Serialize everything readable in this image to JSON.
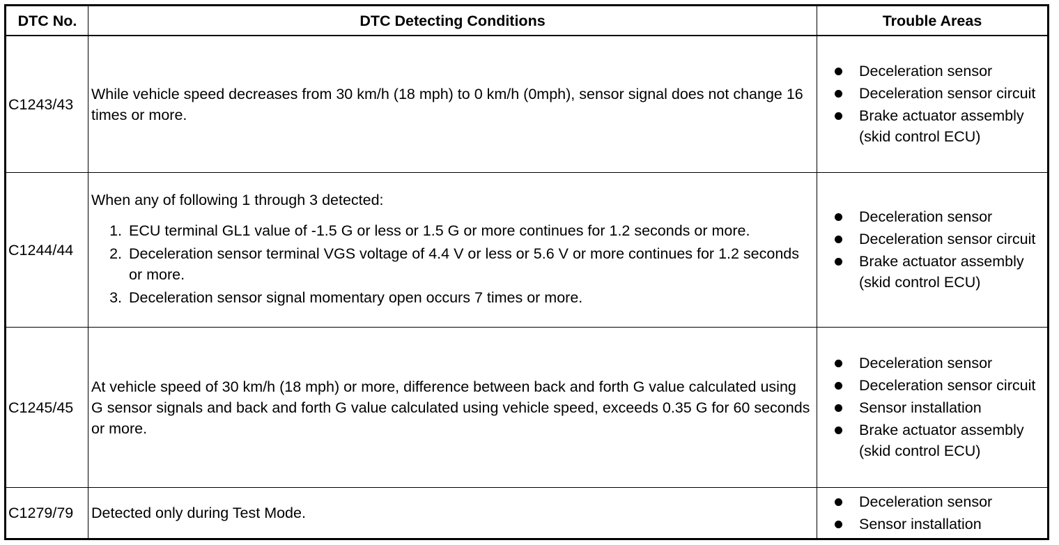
{
  "headers": {
    "dtc_no": "DTC No.",
    "conditions": "DTC Detecting Conditions",
    "trouble_areas": "Trouble Areas"
  },
  "rows": [
    {
      "dtc": "C1243/43",
      "condition": "While vehicle speed decreases from 30 km/h (18 mph) to 0 km/h (0mph), sensor signal does not change 16 times or more.",
      "areas": [
        "Deceleration sensor",
        "Deceleration sensor circuit",
        "Brake actuator assembly (skid control ECU)"
      ]
    },
    {
      "dtc": "C1244/44",
      "condition_intro": "When any of following 1 through 3 detected:",
      "steps": [
        "ECU terminal GL1 value of -1.5 G or less or 1.5 G or more continues for 1.2 seconds or more.",
        "Deceleration sensor terminal VGS voltage of 4.4 V or less or 5.6 V or more continues for 1.2 seconds or more.",
        "Deceleration sensor signal momentary open occurs 7 times or more."
      ],
      "areas": [
        "Deceleration sensor",
        "Deceleration sensor circuit",
        "Brake actuator assembly (skid control ECU)"
      ]
    },
    {
      "dtc": "C1245/45",
      "condition": "At vehicle speed of 30 km/h (18 mph) or more, difference between back and forth G value calculated using G sensor signals and back and forth G value calculated using vehicle speed, exceeds 0.35 G for 60 seconds or more.",
      "areas": [
        "Deceleration sensor",
        "Deceleration sensor circuit",
        "Sensor installation",
        "Brake actuator assembly (skid control ECU)"
      ]
    },
    {
      "dtc": "C1279/79",
      "condition": "Detected only during Test Mode.",
      "areas": [
        "Deceleration sensor",
        "Sensor installation"
      ]
    }
  ]
}
